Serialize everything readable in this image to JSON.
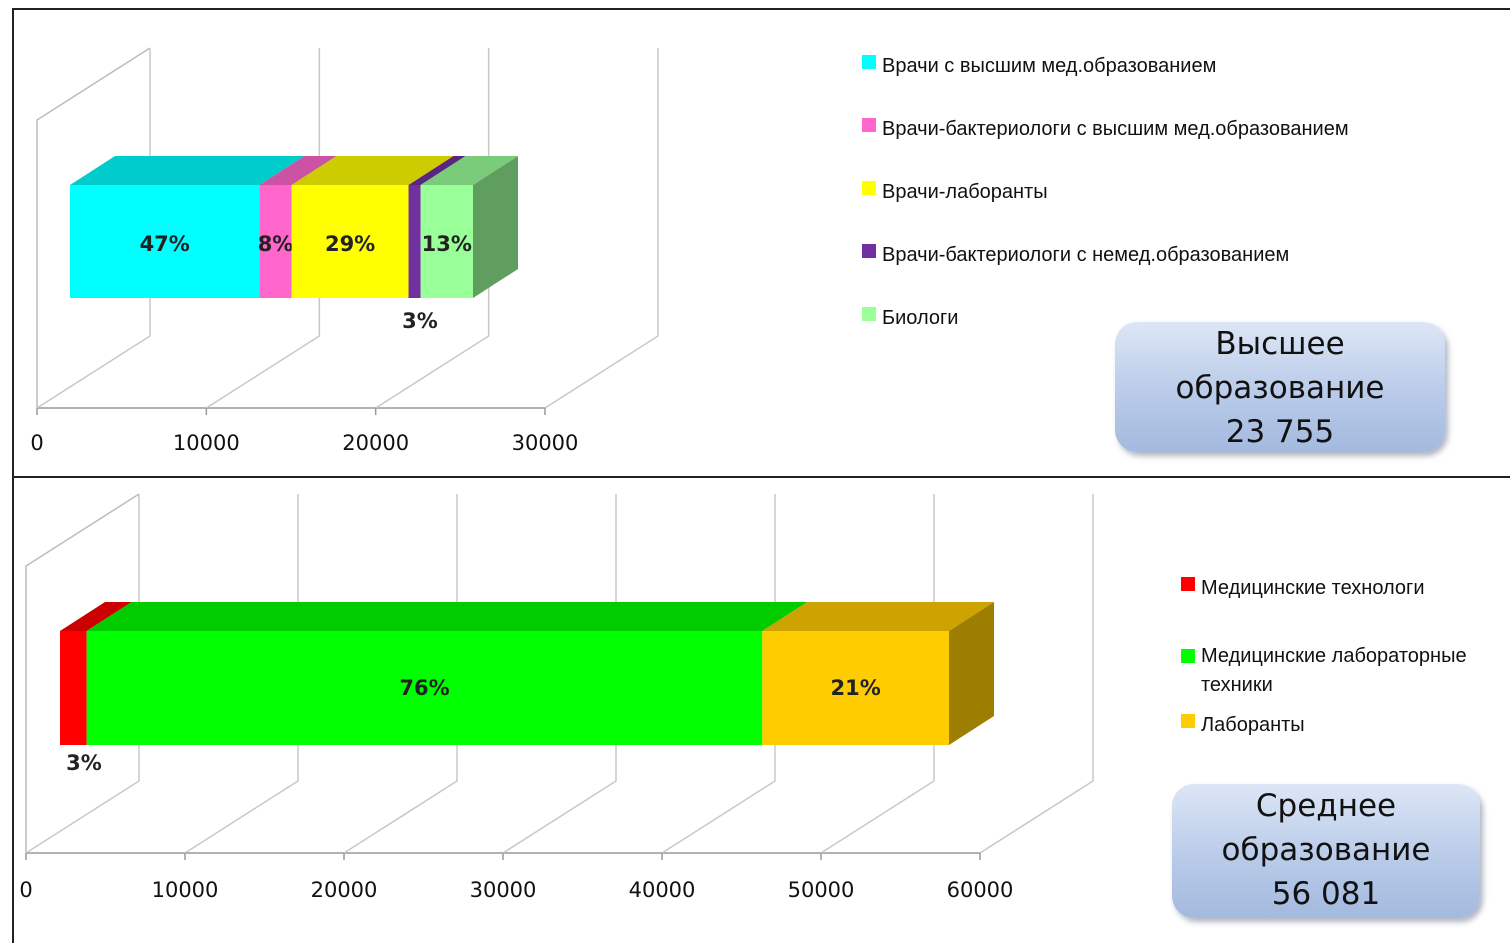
{
  "chart_data": [
    {
      "type": "bar",
      "orientation": "horizontal-stacked-3d",
      "xlim": [
        0,
        30000
      ],
      "xticks": [
        "0",
        "10000",
        "20000",
        "30000"
      ],
      "grid": true,
      "legend_position": "right",
      "segments": [
        {
          "name": "Врачи с высшим мед.образованием",
          "value": 11165,
          "label": "47%",
          "color": "#00ffff"
        },
        {
          "name": "Врачи-бактериологи с высшим мед.образованием",
          "value": 1900,
          "label": "8%",
          "color": "#ff66cc"
        },
        {
          "name": "Врачи-лаборанты",
          "value": 6890,
          "label": "29%",
          "color": "#ffff00"
        },
        {
          "name": "Врачи-бактериологи с немед.образованием",
          "value": 713,
          "label": "3%",
          "color": "#7030a0"
        },
        {
          "name": "Биологи",
          "value": 3087,
          "label": "13%",
          "color": "#99ff99"
        }
      ],
      "summary": [
        "Высшее",
        "образование",
        "23 755"
      ]
    },
    {
      "type": "bar",
      "orientation": "horizontal-stacked-3d",
      "xlim": [
        0,
        60000
      ],
      "xticks": [
        "0",
        "10000",
        "20000",
        "30000",
        "40000",
        "50000",
        "60000"
      ],
      "grid": true,
      "legend_position": "right",
      "segments": [
        {
          "name": "Медицинские технологи",
          "value": 1682,
          "label": "3%",
          "color": "#ff0000"
        },
        {
          "name": "Медицинские лабораторные техники",
          "value": 42622,
          "label": "76%",
          "color": "#00ff00"
        },
        {
          "name": "Лаборанты",
          "value": 11777,
          "label": "21%",
          "color": "#ffcc00"
        }
      ],
      "summary": [
        "Среднее",
        "образование",
        "56 081"
      ]
    }
  ]
}
